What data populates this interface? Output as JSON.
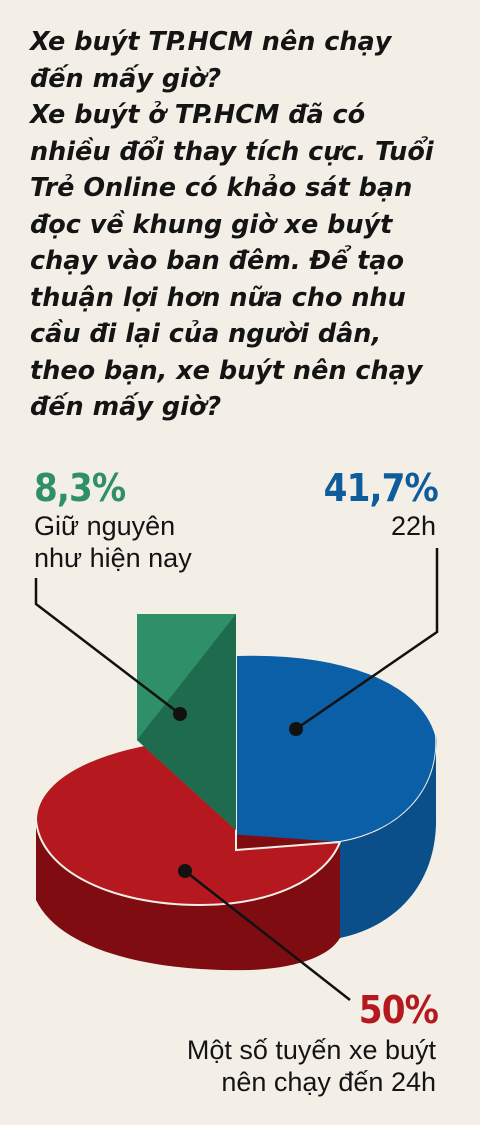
{
  "title": "Xe buýt TP.HCM nên chạy đến mấy giờ?",
  "question": "Xe buýt ở TP.HCM đã có nhiều đổi thay tích cực. Tuổi Trẻ Online có khảo sát bạn đọc về khung giờ xe buýt chạy vào ban đêm. Để tạo thuận lợi hơn nữa cho nhu cầu đi lại của người dân, theo bạn, xe buýt nên chạy đến mấy giờ?",
  "chart_data": {
    "type": "pie",
    "slices": [
      {
        "name": "22h",
        "value": 41.7,
        "value_label": "41,7%",
        "label_lines": [
          "22h"
        ],
        "color": "#0e5c9c"
      },
      {
        "name": "Một số tuyến xe buýt nên chạy đến 24h",
        "value": 50,
        "value_label": "50%",
        "label_lines": [
          "Một số tuyến xe buýt",
          "nên chạy đến 24h"
        ],
        "color": "#b5191f"
      },
      {
        "name": "Giữ nguyên như hiện nay",
        "value": 8.3,
        "value_label": "8,3%",
        "label_lines": [
          "Giữ nguyên",
          "như hiện nay"
        ],
        "color": "#2f8f68"
      }
    ]
  }
}
